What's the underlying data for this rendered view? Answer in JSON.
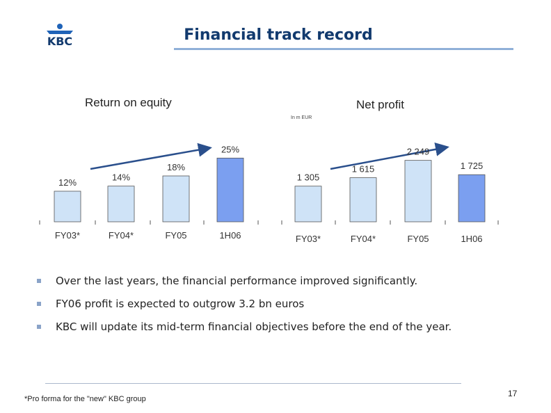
{
  "header": {
    "title": "Financial track record",
    "logo_text": "KBC"
  },
  "chart_data": [
    {
      "type": "bar",
      "title": "Return on equity",
      "categories": [
        "FY03*",
        "FY04*",
        "FY05",
        "1H06"
      ],
      "values": [
        12,
        14,
        18,
        25
      ],
      "value_labels": [
        "12%",
        "14%",
        "18%",
        "25%"
      ],
      "ylim": [
        0,
        30
      ],
      "highlight_last": true,
      "trend_arrow": true
    },
    {
      "type": "bar",
      "title": "Net profit",
      "unit": "In m EUR",
      "categories": [
        "FY03*",
        "FY04*",
        "FY05",
        "1H06"
      ],
      "values": [
        1305,
        1615,
        2249,
        1725
      ],
      "value_labels": [
        "1 305",
        "1 615",
        "2 249",
        "1 725"
      ],
      "ylim": [
        0,
        2800
      ],
      "highlight_last": true,
      "trend_arrow": true
    }
  ],
  "bullets": [
    "Over the last years, the financial performance improved significantly.",
    "FY06 profit is expected to outgrow 3.2 bn euros",
    "KBC will update its mid-term financial objectives before the end of the year."
  ],
  "footnote": "*Pro forma for the \"new\" KBC group",
  "page_number": "17",
  "colors": {
    "bar": "#cfe3f7",
    "bar_highlight": "#7b9ff0",
    "title": "#123a6e",
    "accent": "#8fb0d8"
  }
}
